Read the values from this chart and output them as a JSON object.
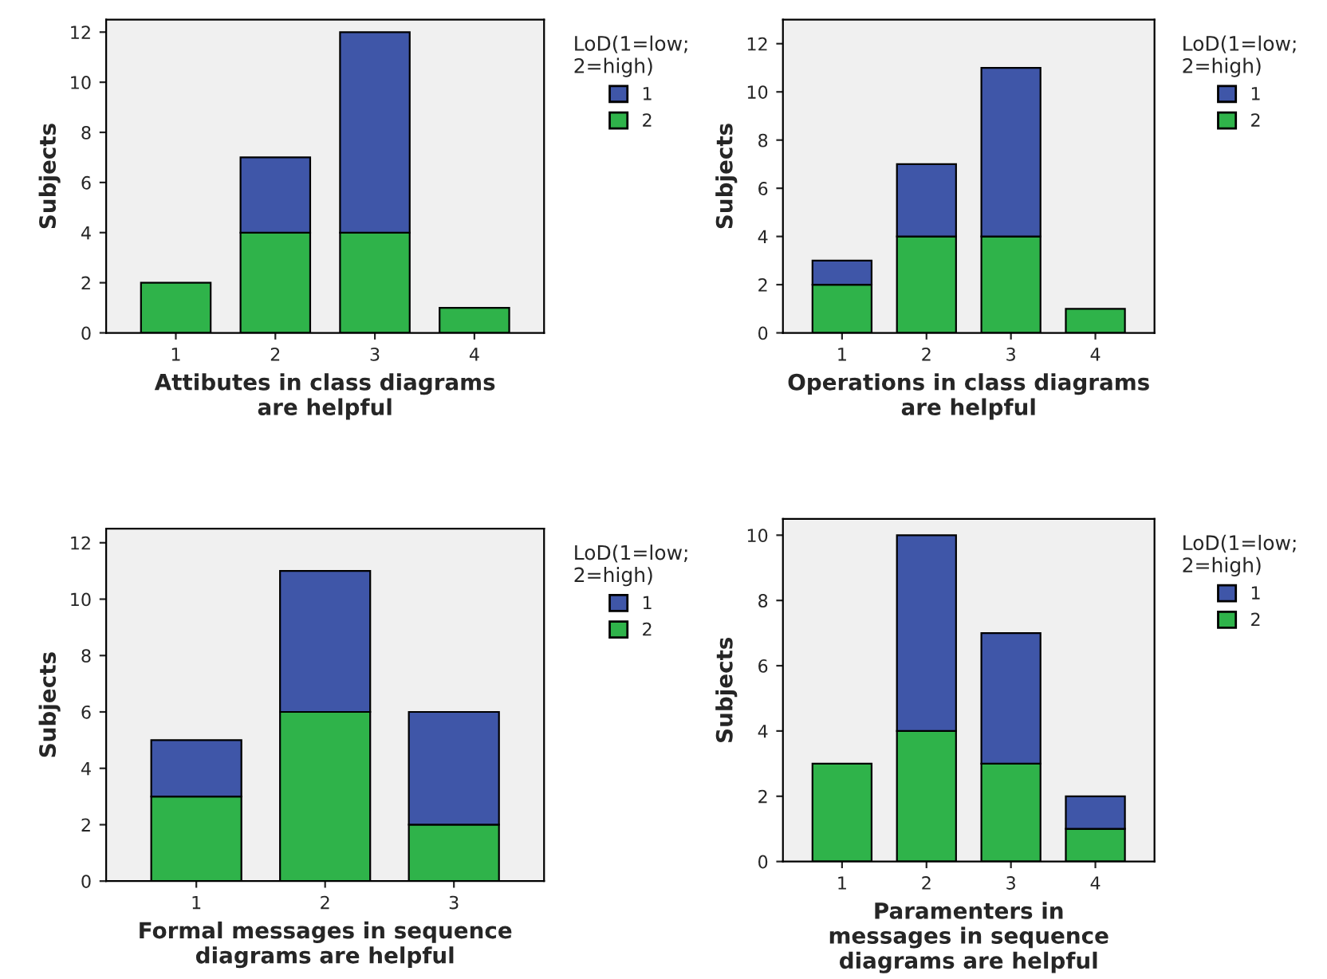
{
  "chart_data": [
    {
      "type": "bar",
      "stacked": true,
      "categories": [
        "1",
        "2",
        "3",
        "4"
      ],
      "xlabel": "Attibutes in class diagrams\nare helpful",
      "ylabel": "Subjects",
      "legend_title": "LoD(1=low;\n2=high)",
      "legend": "right",
      "grid": false,
      "ylim": [
        0,
        12.5
      ],
      "yticks": [
        0,
        2,
        4,
        6,
        8,
        10,
        12
      ],
      "series": [
        {
          "name": "2",
          "color": "#2fb34a",
          "values": [
            2,
            4,
            4,
            1
          ]
        },
        {
          "name": "1",
          "color": "#3f56a8",
          "values": [
            0,
            3,
            8,
            0
          ]
        }
      ]
    },
    {
      "type": "bar",
      "stacked": true,
      "categories": [
        "1",
        "2",
        "3",
        "4"
      ],
      "xlabel": "Operations in class diagrams\nare helpful",
      "ylabel": "Subjects",
      "legend_title": "LoD(1=low;\n2=high)",
      "legend": "right",
      "grid": false,
      "ylim": [
        0,
        13
      ],
      "yticks": [
        0,
        2,
        4,
        6,
        8,
        10,
        12
      ],
      "series": [
        {
          "name": "2",
          "color": "#2fb34a",
          "values": [
            2,
            4,
            4,
            1
          ]
        },
        {
          "name": "1",
          "color": "#3f56a8",
          "values": [
            1,
            3,
            7,
            0
          ]
        }
      ]
    },
    {
      "type": "bar",
      "stacked": true,
      "categories": [
        "1",
        "2",
        "3"
      ],
      "xlabel": "Formal messages in sequence\ndiagrams are helpful",
      "ylabel": "Subjects",
      "legend_title": "LoD(1=low;\n2=high)",
      "legend": "right",
      "grid": false,
      "ylim": [
        0,
        12.5
      ],
      "yticks": [
        0,
        2,
        4,
        6,
        8,
        10,
        12
      ],
      "series": [
        {
          "name": "2",
          "color": "#2fb34a",
          "values": [
            3,
            6,
            2
          ]
        },
        {
          "name": "1",
          "color": "#3f56a8",
          "values": [
            2,
            5,
            4
          ]
        }
      ]
    },
    {
      "type": "bar",
      "stacked": true,
      "categories": [
        "1",
        "2",
        "3",
        "4"
      ],
      "xlabel": "Paramenters in\nmessages in sequence\ndiagrams are helpful",
      "ylabel": "Subjects",
      "legend_title": "LoD(1=low;\n2=high)",
      "legend": "right",
      "grid": false,
      "ylim": [
        0,
        10.5
      ],
      "yticks": [
        0,
        2,
        4,
        6,
        8,
        10
      ],
      "series": [
        {
          "name": "2",
          "color": "#2fb34a",
          "values": [
            3,
            4,
            3,
            1
          ]
        },
        {
          "name": "1",
          "color": "#3f56a8",
          "values": [
            0,
            6,
            4,
            1
          ]
        }
      ]
    }
  ]
}
